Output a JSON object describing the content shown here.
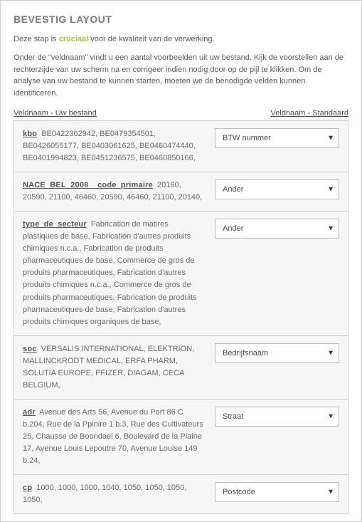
{
  "title": "BEVESTIG LAYOUT",
  "intro_pre": "Deze stap is ",
  "intro_crucial": "cruciaal",
  "intro_post": " voor de kwaliteit van de verwerking.",
  "help": "Onder de \"veldnaam\" vindt u een aantal voorbeelden uit uw bestand.\nKijk de voorstellen aan de rechterzijde van uw scherm na en corrigeer indien nodig door op de pijl te klikken. Om de analyse van uw bestand te kunnen starten, moeten we de benodigde velden kunnen identificeren.",
  "header_left": "Veldnaam - Uw bestand",
  "header_right": "Veldnaam - Standaard",
  "rows": [
    {
      "field": "kbo",
      "sample": "BE0422362942, BE0479354501, BE0426055177, BE0403061625, BE0460474440, BE0401994823, BE0451236575, BE0460850166,",
      "selected": "BTW nummer"
    },
    {
      "field": "NACE_BEL_2008__code_primaire",
      "sample": "20160, 20590, 21100, 46460, 20590, 46460, 21100, 20140,",
      "selected": "Ander"
    },
    {
      "field": "type_de_secteur",
      "sample": "Fabrication de matires plastiques de base, Fabrication d'autres produits chimiques n.c.a., Fabrication de produits pharmaceutiques de base, Commerce de gros de produits pharmaceutiques, Fabrication d'autres produits chimiques n.c.a., Commerce de gros de produits pharmaceutiques, Fabrication de produits pharmaceutiques de base, Fabrication d'autres produits chimiques organiques de base,",
      "selected": "Ander"
    },
    {
      "field": "soc",
      "sample": "VERSALIS INTERNATIONAL, ELEKTRION, MALLINCKRODT MEDICAL, ERFA PHARM, SOLUTIA EUROPE, PFIZER, DIAGAM, CECA BELGIUM,",
      "selected": "Bedrijfsnaam"
    },
    {
      "field": "adr",
      "sample": "Avenue des Arts 56, Avenue du Port 86 C b.204, Rue de la Ppinire 1 b.3, Rue des Cultivateurs 25, Chausse de Boondael 6, Boulevard de la Plaine 17, Avenue Louis Lepoutre 70, Avenue Louise 149 b.24,",
      "selected": "Straat"
    },
    {
      "field": "cp",
      "sample": "1000, 1000, 1000, 1040, 1050, 1050, 1050, 1050,",
      "selected": "Postcode"
    }
  ]
}
